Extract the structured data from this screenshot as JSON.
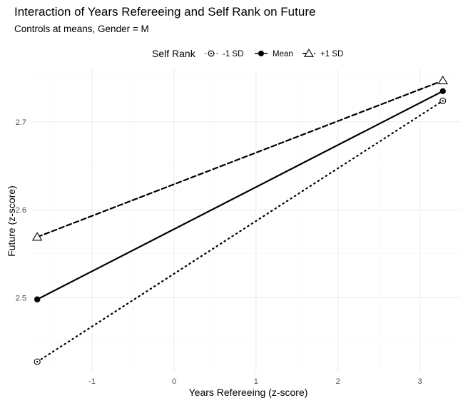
{
  "chart_data": {
    "type": "line",
    "title": "Interaction of Years Refereeing and Self Rank on Future",
    "subtitle": "Controls at means, Gender = M",
    "xlabel": "Years Refereeing (z-score)",
    "ylabel": "Future (z-score)",
    "xlim": [
      -1.75,
      3.5
    ],
    "ylim": [
      2.415,
      2.76
    ],
    "x_ticks": [
      -1,
      0,
      1,
      2,
      3
    ],
    "y_ticks": [
      2.5,
      2.6,
      2.7
    ],
    "x_tick_labels": [
      "-1",
      "0",
      "1",
      "2",
      "3"
    ],
    "y_tick_labels": [
      "2.5",
      "2.6",
      "2.7"
    ],
    "grid": true,
    "legend": {
      "title": "Self Rank",
      "position": "top"
    },
    "series": [
      {
        "name": "-1 SD",
        "x": [
          -1.67,
          3.28
        ],
        "y": [
          2.427,
          2.724
        ],
        "linestyle": "dotted",
        "marker": "circle-dot"
      },
      {
        "name": "Mean",
        "x": [
          -1.67,
          3.28
        ],
        "y": [
          2.498,
          2.735
        ],
        "linestyle": "solid",
        "marker": "filled-circle"
      },
      {
        "name": "+1 SD",
        "x": [
          -1.67,
          3.28
        ],
        "y": [
          2.569,
          2.747
        ],
        "linestyle": "dashed",
        "marker": "open-triangle"
      }
    ]
  }
}
